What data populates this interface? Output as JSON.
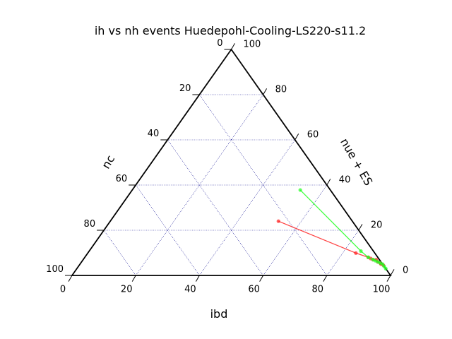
{
  "chart_data": {
    "type": "scatter",
    "subtype": "ternary",
    "title": "ih vs nh events Huedepohl-Cooling-LS220-s11.2",
    "axes": {
      "bottom": {
        "label": "ibd",
        "ticks": [
          "0",
          "20",
          "40",
          "60",
          "80",
          "100"
        ]
      },
      "left": {
        "label": "nc",
        "ticks": [
          "100",
          "80",
          "60",
          "40",
          "20",
          "0"
        ]
      },
      "right": {
        "label": "nue + ES",
        "ticks": [
          "0",
          "20",
          "40",
          "60",
          "80",
          "100"
        ]
      }
    },
    "grid": true,
    "grid_color": "#00008b",
    "series": [
      {
        "color": "#ff2020",
        "points": [
          {
            "ibd": 66,
            "nc": 29,
            "nue_es": 30
          },
          {
            "ibd": 85,
            "nc": 6,
            "nue_es": 10
          },
          {
            "ibd": 89,
            "nc": 3,
            "nue_es": 8
          },
          {
            "ibd": 90,
            "nc": 2.5,
            "nue_es": 7.5
          },
          {
            "ibd": 91,
            "nc": 2,
            "nue_es": 7
          },
          {
            "ibd": 92,
            "nc": 1,
            "nue_es": 7
          },
          {
            "ibd": 93,
            "nc": 1,
            "nue_es": 6
          },
          {
            "ibd": 94,
            "nc": 0.5,
            "nue_es": 5.5
          },
          {
            "ibd": 95,
            "nc": 0.5,
            "nue_es": 5
          },
          {
            "ibd": 96,
            "nc": 0,
            "nue_es": 4.5
          }
        ]
      },
      {
        "color": "#22ff22",
        "points": [
          {
            "ibd": 67,
            "nc": 12,
            "nue_es": 48
          },
          {
            "ibd": 87,
            "nc": 4,
            "nue_es": 11
          },
          {
            "ibd": 89,
            "nc": 3,
            "nue_es": 8
          },
          {
            "ibd": 91,
            "nc": 2,
            "nue_es": 7
          },
          {
            "ibd": 92,
            "nc": 1.5,
            "nue_es": 6.5
          },
          {
            "ibd": 93,
            "nc": 1,
            "nue_es": 6
          },
          {
            "ibd": 94,
            "nc": 0.5,
            "nue_es": 5.5
          },
          {
            "ibd": 95,
            "nc": 0,
            "nue_es": 5
          },
          {
            "ibd": 96,
            "nc": 0,
            "nue_es": 4
          },
          {
            "ibd": 97,
            "nc": 0,
            "nue_es": 3
          }
        ]
      }
    ]
  }
}
